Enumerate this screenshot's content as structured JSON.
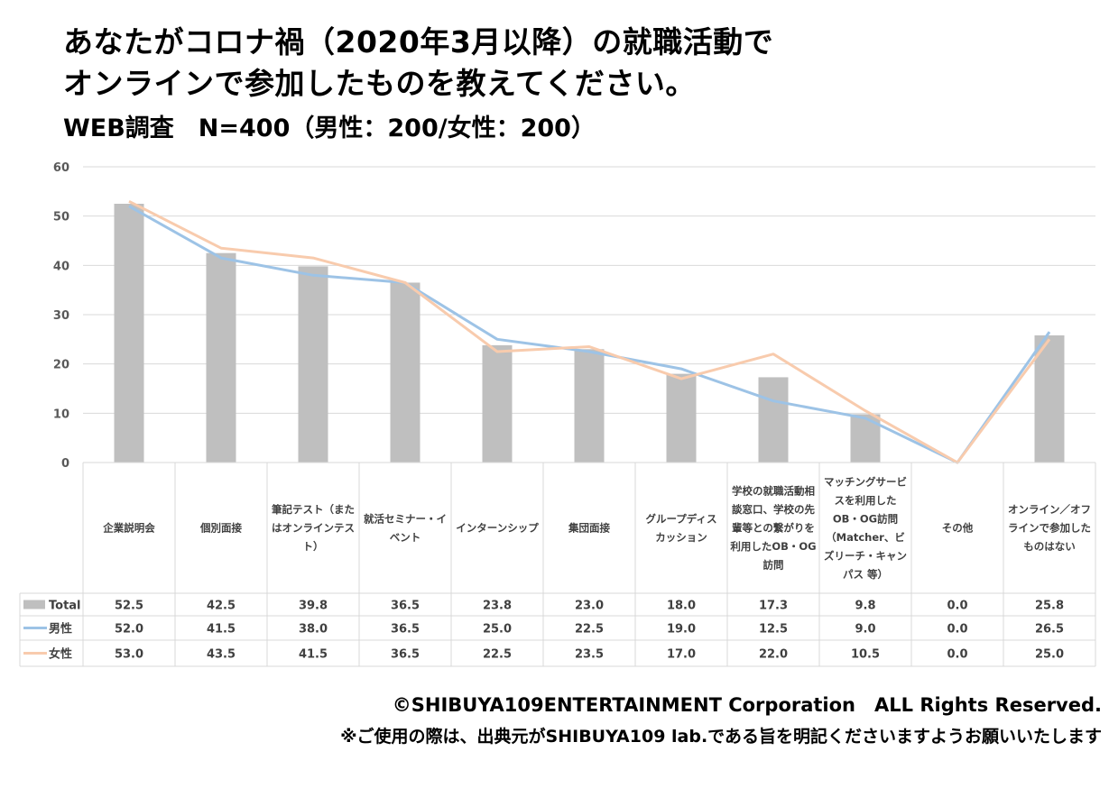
{
  "header": {
    "title_line1": "あなたがコロナ禍（2020年3月以降）の就職活動で",
    "title_line2": "オンラインで参加したものを教えてください。",
    "subtitle": "WEB調査　N=400（男性：200/女性：200）"
  },
  "chart_data": {
    "type": "bar",
    "categories": [
      "企業説明会",
      "個別面接",
      "筆記テスト（またはオンラインテスト）",
      "就活セミナー・イベント",
      "インターンシップ",
      "集団面接",
      "グループディスカッション",
      "学校の就職活動相談窓口、学校の先輩等との繋がりを利用したOB・OG訪問",
      "マッチングサービスを利用したOB・OG訪問（Matcher、ビズリーチ・キャンパス 等）",
      "その他",
      "オンライン／オフラインで参加したものはない"
    ],
    "category_lines": [
      [
        "企業説明会"
      ],
      [
        "個別面接"
      ],
      [
        "筆記テスト（また",
        "はオンラインテス",
        "ト）"
      ],
      [
        "就活セミナー・イ",
        "ベント"
      ],
      [
        "インターンシップ"
      ],
      [
        "集団面接"
      ],
      [
        "グループディス",
        "カッション"
      ],
      [
        "学校の就職活動相",
        "談窓口、学校の先",
        "輩等との繋がりを",
        "利用したOB・OG",
        "訪問"
      ],
      [
        "マッチングサービ",
        "スを利用した",
        "OB・OG訪問",
        "（Matcher、ビ",
        "ズリーチ・キャン",
        "パス 等）"
      ],
      [
        "その他"
      ],
      [
        "オンライン／オフ",
        "ラインで参加した",
        "ものはない"
      ]
    ],
    "series": [
      {
        "name": "Total",
        "kind": "bar",
        "color": "#bfbfbf",
        "values": [
          52.5,
          42.5,
          39.8,
          36.5,
          23.8,
          23.0,
          18.0,
          17.3,
          9.8,
          0.0,
          25.8
        ],
        "labels": [
          "52.5",
          "42.5",
          "39.8",
          "36.5",
          "23.8",
          "23.0",
          "18.0",
          "17.3",
          "9.8",
          "0.0",
          "25.8"
        ]
      },
      {
        "name": "男性",
        "kind": "line",
        "color": "#9dc3e6",
        "values": [
          52.0,
          41.5,
          38.0,
          36.5,
          25.0,
          22.5,
          19.0,
          12.5,
          9.0,
          0.0,
          26.5
        ],
        "labels": [
          "52.0",
          "41.5",
          "38.0",
          "36.5",
          "25.0",
          "22.5",
          "19.0",
          "12.5",
          "9.0",
          "0.0",
          "26.5"
        ]
      },
      {
        "name": "女性",
        "kind": "line",
        "color": "#f8cbad",
        "values": [
          53.0,
          43.5,
          41.5,
          36.5,
          22.5,
          23.5,
          17.0,
          22.0,
          10.5,
          0.0,
          25.0
        ],
        "labels": [
          "53.0",
          "43.5",
          "41.5",
          "36.5",
          "22.5",
          "23.5",
          "17.0",
          "22.0",
          "10.5",
          "0.0",
          "25.0"
        ]
      }
    ],
    "ylim": [
      0,
      60
    ],
    "yticks": [
      "0",
      "10",
      "20",
      "30",
      "40",
      "50",
      "60"
    ],
    "grid": true,
    "legend": "data-table"
  },
  "footer": {
    "credit": "©SHIBUYA109ENTERTAINMENT Corporation　ALL Rights Reserved.",
    "notice": "※ご使用の際は、出典元がSHIBUYA109 lab.である旨を明記くださいますようお願いいたします"
  }
}
